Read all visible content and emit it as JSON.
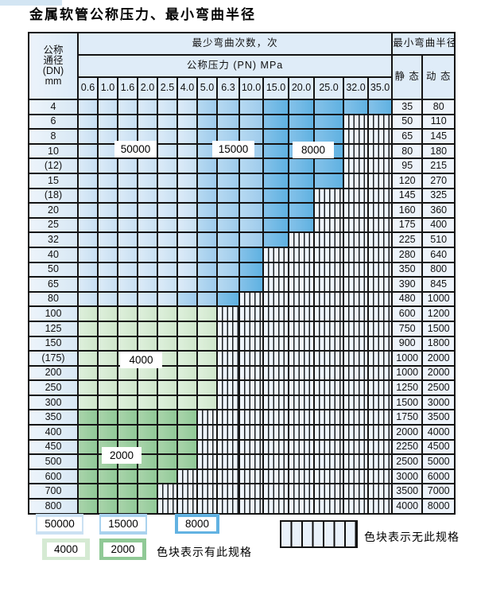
{
  "title": "金属软管公称压力、最小弯曲半径",
  "chart_data": {
    "type": "table",
    "title": "金属软管公称压力、最小弯曲半径",
    "header": {
      "dn_label_lines": [
        "公称",
        "通径",
        "(DN)",
        "mm"
      ],
      "bend_cycles_label": "最少弯曲次数，次",
      "min_bend_radius_label": "最小弯曲半径",
      "pressure_label": "公称压力 (PN) MPa",
      "static_label": "静 态",
      "dynamic_label": "动 态"
    },
    "columns": [
      "0.6",
      "1.0",
      "1.6",
      "2.0",
      "2.5",
      "4.0",
      "5.0",
      "6.3",
      "10.0",
      "15.0",
      "20.0",
      "25.0",
      "32.0",
      "35.0"
    ],
    "zone_meaning": "colored zone value = minimum bend cycles; hatched = spec not available",
    "rows": [
      {
        "dn": "4",
        "spans": [
          {
            "zone": "50000",
            "cols": 6
          },
          {
            "zone": "15000",
            "cols": 3
          },
          {
            "zone": "8000",
            "cols": 5
          }
        ],
        "static": "35",
        "dynamic": "80"
      },
      {
        "dn": "6",
        "spans": [
          {
            "zone": "50000",
            "cols": 6
          },
          {
            "zone": "15000",
            "cols": 3
          },
          {
            "zone": "8000",
            "cols": 3
          }
        ],
        "static": "50",
        "dynamic": "110"
      },
      {
        "dn": "8",
        "spans": [
          {
            "zone": "50000",
            "cols": 6
          },
          {
            "zone": "15000",
            "cols": 3
          },
          {
            "zone": "8000",
            "cols": 3
          }
        ],
        "static": "65",
        "dynamic": "145"
      },
      {
        "dn": "10",
        "spans": [
          {
            "zone": "50000",
            "cols": 6
          },
          {
            "zone": "15000",
            "cols": 3
          },
          {
            "zone": "8000",
            "cols": 3
          }
        ],
        "static": "80",
        "dynamic": "180"
      },
      {
        "dn": "(12)",
        "spans": [
          {
            "zone": "50000",
            "cols": 6
          },
          {
            "zone": "15000",
            "cols": 3
          },
          {
            "zone": "8000",
            "cols": 3
          }
        ],
        "static": "95",
        "dynamic": "215"
      },
      {
        "dn": "15",
        "spans": [
          {
            "zone": "50000",
            "cols": 6
          },
          {
            "zone": "15000",
            "cols": 3
          },
          {
            "zone": "8000",
            "cols": 3
          }
        ],
        "static": "120",
        "dynamic": "270"
      },
      {
        "dn": "(18)",
        "spans": [
          {
            "zone": "50000",
            "cols": 6
          },
          {
            "zone": "15000",
            "cols": 3
          },
          {
            "zone": "8000",
            "cols": 2
          }
        ],
        "static": "145",
        "dynamic": "325"
      },
      {
        "dn": "20",
        "spans": [
          {
            "zone": "50000",
            "cols": 6
          },
          {
            "zone": "15000",
            "cols": 3
          },
          {
            "zone": "8000",
            "cols": 2
          }
        ],
        "static": "160",
        "dynamic": "360"
      },
      {
        "dn": "25",
        "spans": [
          {
            "zone": "50000",
            "cols": 6
          },
          {
            "zone": "15000",
            "cols": 3
          },
          {
            "zone": "8000",
            "cols": 2
          }
        ],
        "static": "175",
        "dynamic": "400"
      },
      {
        "dn": "32",
        "spans": [
          {
            "zone": "50000",
            "cols": 6
          },
          {
            "zone": "15000",
            "cols": 3
          },
          {
            "zone": "8000",
            "cols": 1
          }
        ],
        "static": "225",
        "dynamic": "510"
      },
      {
        "dn": "40",
        "spans": [
          {
            "zone": "50000",
            "cols": 6
          },
          {
            "zone": "15000",
            "cols": 2
          },
          {
            "zone": "8000",
            "cols": 1
          }
        ],
        "static": "280",
        "dynamic": "640"
      },
      {
        "dn": "50",
        "spans": [
          {
            "zone": "50000",
            "cols": 6
          },
          {
            "zone": "15000",
            "cols": 2
          },
          {
            "zone": "8000",
            "cols": 1
          }
        ],
        "static": "350",
        "dynamic": "800"
      },
      {
        "dn": "65",
        "spans": [
          {
            "zone": "50000",
            "cols": 6
          },
          {
            "zone": "15000",
            "cols": 2
          },
          {
            "zone": "8000",
            "cols": 1
          }
        ],
        "static": "390",
        "dynamic": "845"
      },
      {
        "dn": "80",
        "spans": [
          {
            "zone": "50000",
            "cols": 5
          },
          {
            "zone": "15000",
            "cols": 2
          },
          {
            "zone": "8000",
            "cols": 1
          }
        ],
        "static": "480",
        "dynamic": "1000"
      },
      {
        "dn": "100",
        "spans": [
          {
            "zone": "4000",
            "cols": 7
          }
        ],
        "static": "600",
        "dynamic": "1200"
      },
      {
        "dn": "125",
        "spans": [
          {
            "zone": "4000",
            "cols": 7
          }
        ],
        "static": "750",
        "dynamic": "1500"
      },
      {
        "dn": "150",
        "spans": [
          {
            "zone": "4000",
            "cols": 7
          }
        ],
        "static": "900",
        "dynamic": "1800"
      },
      {
        "dn": "(175)",
        "spans": [
          {
            "zone": "4000",
            "cols": 7
          }
        ],
        "static": "1000",
        "dynamic": "2000"
      },
      {
        "dn": "200",
        "spans": [
          {
            "zone": "4000",
            "cols": 7
          }
        ],
        "static": "1000",
        "dynamic": "2000"
      },
      {
        "dn": "250",
        "spans": [
          {
            "zone": "4000",
            "cols": 7
          }
        ],
        "static": "1250",
        "dynamic": "2500"
      },
      {
        "dn": "300",
        "spans": [
          {
            "zone": "4000",
            "cols": 7
          }
        ],
        "static": "1500",
        "dynamic": "3000"
      },
      {
        "dn": "350",
        "spans": [
          {
            "zone": "2000",
            "cols": 6
          }
        ],
        "static": "1750",
        "dynamic": "3500"
      },
      {
        "dn": "400",
        "spans": [
          {
            "zone": "2000",
            "cols": 6
          }
        ],
        "static": "2000",
        "dynamic": "4000"
      },
      {
        "dn": "450",
        "spans": [
          {
            "zone": "2000",
            "cols": 6
          }
        ],
        "static": "2250",
        "dynamic": "4500"
      },
      {
        "dn": "500",
        "spans": [
          {
            "zone": "2000",
            "cols": 6
          }
        ],
        "static": "2500",
        "dynamic": "5000"
      },
      {
        "dn": "600",
        "spans": [
          {
            "zone": "2000",
            "cols": 5
          }
        ],
        "static": "3000",
        "dynamic": "6000"
      },
      {
        "dn": "700",
        "spans": [
          {
            "zone": "2000",
            "cols": 4
          }
        ],
        "static": "3500",
        "dynamic": "7000"
      },
      {
        "dn": "800",
        "spans": [
          {
            "zone": "2000",
            "cols": 4
          }
        ],
        "static": "4000",
        "dynamic": "8000"
      }
    ]
  },
  "overlay_labels": [
    "50000",
    "15000",
    "8000",
    "4000",
    "2000"
  ],
  "legend": {
    "swatches": [
      {
        "label": "50000",
        "color": "#cbe1f3"
      },
      {
        "label": "15000",
        "color": "#a9d2ee"
      },
      {
        "label": "8000",
        "color": "#62b2e2"
      },
      {
        "label": "4000",
        "color": "#d5ead3"
      },
      {
        "label": "2000",
        "color": "#90c996"
      }
    ],
    "has_spec_note": "色块表示有此规格",
    "no_spec_note": "色块表示无此规格"
  },
  "colors": {
    "zone_50000": "#cbe1f3",
    "zone_15000": "#a9d2ee",
    "zone_8000": "#62b2e2",
    "zone_4000": "#d5ead3",
    "zone_2000": "#90c996",
    "hatch_background": "#eef4fb",
    "grid_line": "#141414",
    "header_background": "#dfecf8"
  }
}
